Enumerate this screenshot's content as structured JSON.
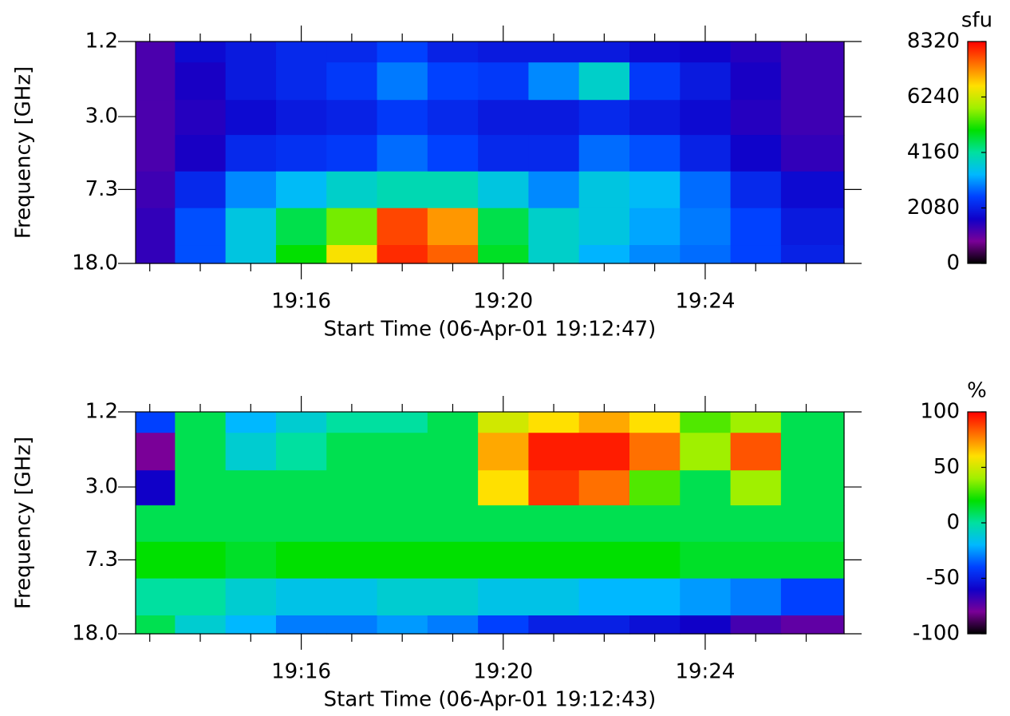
{
  "chart_data": [
    {
      "type": "heatmap",
      "ylabel": "Frequency [GHz]",
      "xlabel": "Start Time (06-Apr-01 19:12:47)",
      "x": [
        13,
        14,
        15,
        16,
        17,
        18,
        19,
        20,
        21,
        22,
        23,
        24,
        25,
        26
      ],
      "y": [
        1.2,
        2.0,
        3.0,
        4.7,
        7.3,
        11.5,
        18.0
      ],
      "z": [
        [
          1200,
          1800,
          2000,
          2200,
          2200,
          2500,
          2100,
          2000,
          2000,
          2000,
          1800,
          1700,
          1500,
          1300
        ],
        [
          1200,
          1600,
          2000,
          2200,
          2400,
          2900,
          2500,
          2400,
          3000,
          3800,
          2400,
          2000,
          1600,
          1300
        ],
        [
          1200,
          1500,
          1800,
          2000,
          2100,
          2400,
          2200,
          2000,
          2000,
          2200,
          2000,
          1800,
          1500,
          1300
        ],
        [
          1200,
          1600,
          2200,
          2300,
          2400,
          2800,
          2500,
          2200,
          2200,
          2800,
          2600,
          2100,
          1700,
          1400
        ],
        [
          1300,
          2200,
          3000,
          3400,
          3800,
          4000,
          4000,
          3600,
          3000,
          3600,
          3400,
          2800,
          2200,
          1800
        ],
        [
          1400,
          2600,
          3600,
          4600,
          5600,
          7800,
          7200,
          4600,
          3800,
          3600,
          3200,
          2900,
          2500,
          2000
        ],
        [
          1400,
          2600,
          3600,
          5000,
          6600,
          8000,
          7600,
          4800,
          3800,
          3300,
          3000,
          2800,
          2500,
          2100
        ]
      ],
      "xlim": [
        12.72,
        26.75
      ],
      "xticks": [
        {
          "value": 16,
          "label": "19:16"
        },
        {
          "value": 20,
          "label": "19:20"
        },
        {
          "value": 24,
          "label": "19:24"
        }
      ],
      "xminorticks": [
        13,
        14,
        15,
        17,
        18,
        19,
        21,
        22,
        23,
        25,
        26
      ],
      "ylim": [
        1.2,
        18.0
      ],
      "ylog": true,
      "yticks": [
        1.2,
        {
          "value": 3,
          "label": "3.0"
        },
        7.3,
        {
          "value": 18,
          "label": "18.0"
        }
      ],
      "colorbar": {
        "label": "sfu",
        "lim": [
          0,
          8320
        ],
        "ticks": [
          0,
          2080,
          4160,
          6240,
          8320
        ]
      },
      "colormap": [
        "#000000",
        "#7a0098",
        "#1000c8",
        "#0040ff",
        "#00b8ff",
        "#00e0a0",
        "#00e000",
        "#a0f000",
        "#ffe000",
        "#ff7000",
        "#ff0000"
      ]
    },
    {
      "type": "heatmap",
      "ylabel": "Frequency [GHz]",
      "xlabel": "Start Time (06-Apr-01 19:12:43)",
      "x": [
        13,
        14,
        15,
        16,
        17,
        18,
        19,
        20,
        21,
        22,
        23,
        24,
        25,
        26
      ],
      "y": [
        1.2,
        2.0,
        3.0,
        4.7,
        7.3,
        11.5,
        18.0
      ],
      "z": [
        [
          -40,
          10,
          -20,
          -10,
          0,
          0,
          10,
          50,
          60,
          70,
          60,
          30,
          40,
          10
        ],
        [
          -80,
          10,
          -10,
          0,
          10,
          10,
          10,
          70,
          95,
          95,
          80,
          40,
          85,
          10
        ],
        [
          -60,
          10,
          10,
          10,
          10,
          10,
          10,
          60,
          90,
          80,
          30,
          10,
          40,
          10
        ],
        [
          10,
          10,
          10,
          10,
          10,
          10,
          10,
          10,
          10,
          10,
          10,
          10,
          10,
          10
        ],
        [
          20,
          20,
          15,
          20,
          20,
          20,
          20,
          20,
          20,
          20,
          20,
          15,
          15,
          15
        ],
        [
          0,
          0,
          -10,
          -15,
          -15,
          -10,
          -10,
          -15,
          -15,
          -20,
          -20,
          -25,
          -30,
          -40
        ],
        [
          10,
          -10,
          -20,
          -30,
          -30,
          -25,
          -30,
          -40,
          -50,
          -50,
          -55,
          -60,
          -70,
          -75
        ]
      ],
      "xlim": [
        12.72,
        26.75
      ],
      "xticks": [
        {
          "value": 16,
          "label": "19:16"
        },
        {
          "value": 20,
          "label": "19:20"
        },
        {
          "value": 24,
          "label": "19:24"
        }
      ],
      "xminorticks": [
        13,
        14,
        15,
        17,
        18,
        19,
        21,
        22,
        23,
        25,
        26
      ],
      "ylim": [
        1.2,
        18.0
      ],
      "ylog": true,
      "yticks": [
        1.2,
        {
          "value": 3,
          "label": "3.0"
        },
        7.3,
        {
          "value": 18,
          "label": "18.0"
        }
      ],
      "colorbar": {
        "label": "%",
        "lim": [
          -100,
          100
        ],
        "ticks": [
          -100,
          -50,
          0,
          50,
          100
        ]
      },
      "colormap": [
        "#000000",
        "#7a0098",
        "#1000c8",
        "#0040ff",
        "#00b8ff",
        "#00e0a0",
        "#00e000",
        "#a0f000",
        "#ffe000",
        "#ff7000",
        "#ff0000"
      ]
    }
  ]
}
